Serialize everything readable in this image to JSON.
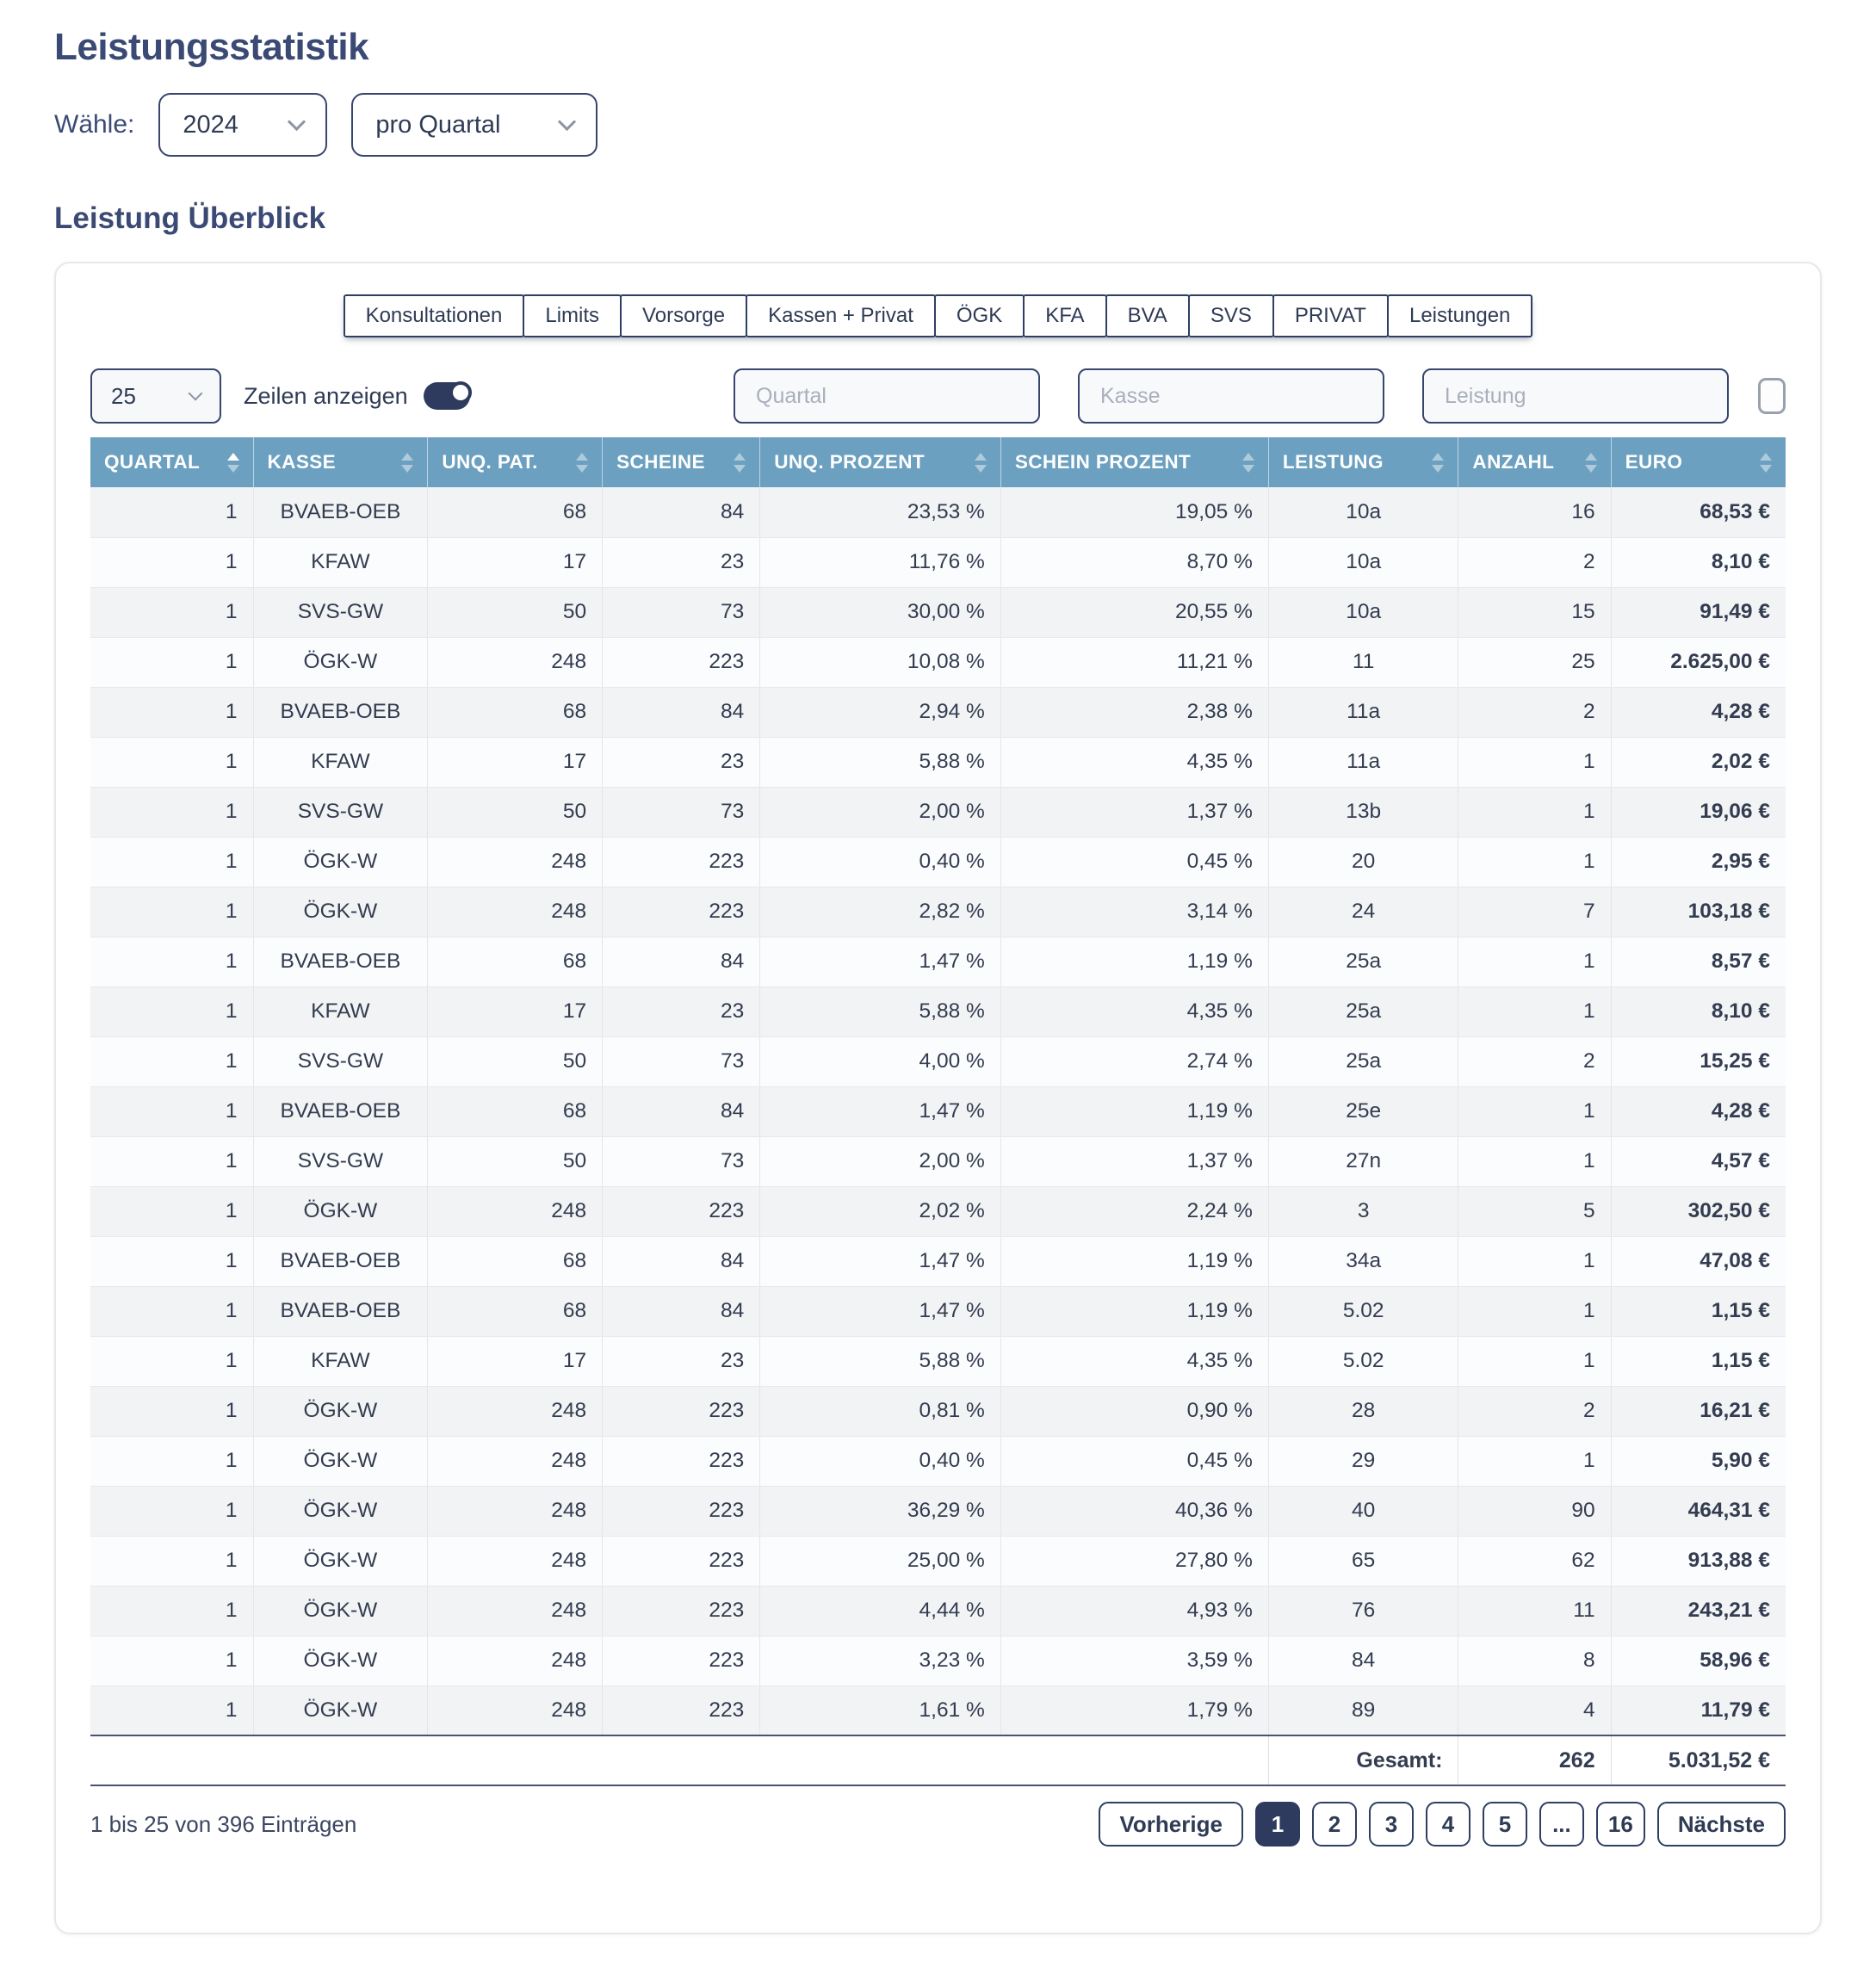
{
  "page": {
    "title": "Leistungsstatistik"
  },
  "filters_top": {
    "label": "Wähle:",
    "year": "2024",
    "period": "pro Quartal"
  },
  "section": {
    "title": "Leistung Überblick"
  },
  "tabs": [
    "Konsultationen",
    "Limits",
    "Vorsorge",
    "Kassen + Privat",
    "ÖGK",
    "KFA",
    "BVA",
    "SVS",
    "PRIVAT",
    "Leistungen"
  ],
  "controls": {
    "page_size": "25",
    "rows_toggle_label": "Zeilen anzeigen",
    "toggle_on": true,
    "filter_placeholders": {
      "quartal": "Quartal",
      "kasse": "Kasse",
      "leistung": "Leistung"
    },
    "checkbox_checked": false
  },
  "table": {
    "columns": [
      {
        "label": "QUARTAL",
        "sort": "asc"
      },
      {
        "label": "KASSE",
        "sort": null
      },
      {
        "label": "UNQ. PAT.",
        "sort": null
      },
      {
        "label": "SCHEINE",
        "sort": null
      },
      {
        "label": "UNQ. PROZENT",
        "sort": null
      },
      {
        "label": "SCHEIN PROZENT",
        "sort": null
      },
      {
        "label": "LEISTUNG",
        "sort": null
      },
      {
        "label": "ANZAHL",
        "sort": null
      },
      {
        "label": "EURO",
        "sort": null
      }
    ],
    "rows": [
      [
        "1",
        "BVAEB-OEB",
        "68",
        "84",
        "23,53 %",
        "19,05 %",
        "10a",
        "16",
        "68,53 €"
      ],
      [
        "1",
        "KFAW",
        "17",
        "23",
        "11,76 %",
        "8,70 %",
        "10a",
        "2",
        "8,10 €"
      ],
      [
        "1",
        "SVS-GW",
        "50",
        "73",
        "30,00 %",
        "20,55 %",
        "10a",
        "15",
        "91,49 €"
      ],
      [
        "1",
        "ÖGK-W",
        "248",
        "223",
        "10,08 %",
        "11,21 %",
        "11",
        "25",
        "2.625,00 €"
      ],
      [
        "1",
        "BVAEB-OEB",
        "68",
        "84",
        "2,94 %",
        "2,38 %",
        "11a",
        "2",
        "4,28 €"
      ],
      [
        "1",
        "KFAW",
        "17",
        "23",
        "5,88 %",
        "4,35 %",
        "11a",
        "1",
        "2,02 €"
      ],
      [
        "1",
        "SVS-GW",
        "50",
        "73",
        "2,00 %",
        "1,37 %",
        "13b",
        "1",
        "19,06 €"
      ],
      [
        "1",
        "ÖGK-W",
        "248",
        "223",
        "0,40 %",
        "0,45 %",
        "20",
        "1",
        "2,95 €"
      ],
      [
        "1",
        "ÖGK-W",
        "248",
        "223",
        "2,82 %",
        "3,14 %",
        "24",
        "7",
        "103,18 €"
      ],
      [
        "1",
        "BVAEB-OEB",
        "68",
        "84",
        "1,47 %",
        "1,19 %",
        "25a",
        "1",
        "8,57 €"
      ],
      [
        "1",
        "KFAW",
        "17",
        "23",
        "5,88 %",
        "4,35 %",
        "25a",
        "1",
        "8,10 €"
      ],
      [
        "1",
        "SVS-GW",
        "50",
        "73",
        "4,00 %",
        "2,74 %",
        "25a",
        "2",
        "15,25 €"
      ],
      [
        "1",
        "BVAEB-OEB",
        "68",
        "84",
        "1,47 %",
        "1,19 %",
        "25e",
        "1",
        "4,28 €"
      ],
      [
        "1",
        "SVS-GW",
        "50",
        "73",
        "2,00 %",
        "1,37 %",
        "27n",
        "1",
        "4,57 €"
      ],
      [
        "1",
        "ÖGK-W",
        "248",
        "223",
        "2,02 %",
        "2,24 %",
        "3",
        "5",
        "302,50 €"
      ],
      [
        "1",
        "BVAEB-OEB",
        "68",
        "84",
        "1,47 %",
        "1,19 %",
        "34a",
        "1",
        "47,08 €"
      ],
      [
        "1",
        "BVAEB-OEB",
        "68",
        "84",
        "1,47 %",
        "1,19 %",
        "5.02",
        "1",
        "1,15 €"
      ],
      [
        "1",
        "KFAW",
        "17",
        "23",
        "5,88 %",
        "4,35 %",
        "5.02",
        "1",
        "1,15 €"
      ],
      [
        "1",
        "ÖGK-W",
        "248",
        "223",
        "0,81 %",
        "0,90 %",
        "28",
        "2",
        "16,21 €"
      ],
      [
        "1",
        "ÖGK-W",
        "248",
        "223",
        "0,40 %",
        "0,45 %",
        "29",
        "1",
        "5,90 €"
      ],
      [
        "1",
        "ÖGK-W",
        "248",
        "223",
        "36,29 %",
        "40,36 %",
        "40",
        "90",
        "464,31 €"
      ],
      [
        "1",
        "ÖGK-W",
        "248",
        "223",
        "25,00 %",
        "27,80 %",
        "65",
        "62",
        "913,88 €"
      ],
      [
        "1",
        "ÖGK-W",
        "248",
        "223",
        "4,44 %",
        "4,93 %",
        "76",
        "11",
        "243,21 €"
      ],
      [
        "1",
        "ÖGK-W",
        "248",
        "223",
        "3,23 %",
        "3,59 %",
        "84",
        "8",
        "58,96 €"
      ],
      [
        "1",
        "ÖGK-W",
        "248",
        "223",
        "1,61 %",
        "1,79 %",
        "89",
        "4",
        "11,79 €"
      ]
    ],
    "footer": {
      "label": "Gesamt:",
      "anzahl": "262",
      "euro": "5.031,52 €"
    }
  },
  "pagination": {
    "previous": "Vorherige",
    "pages": [
      "1",
      "2",
      "3",
      "4",
      "5",
      "...",
      "16"
    ],
    "active": "1",
    "next": "Nächste"
  },
  "info": "1 bis 25 von 396 Einträgen",
  "colors": {
    "accent": "#3B4A74",
    "table_header_bg": "#6CA0C0",
    "active_page_bg": "#2E3B5E",
    "row_stripe": "#F1F3F4"
  }
}
